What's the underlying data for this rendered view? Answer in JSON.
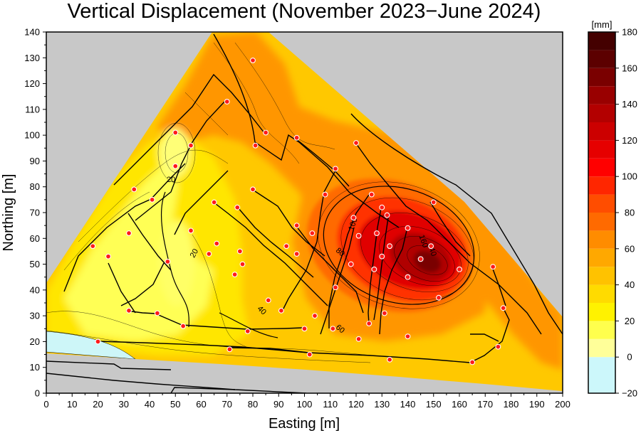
{
  "chart_data": {
    "type": "heatmap",
    "title": "Vertical Displacement (November 2023−June 2024)",
    "xlabel": "Easting [m]",
    "ylabel": "Northing [m]",
    "xlim": [
      0,
      200
    ],
    "ylim": [
      0,
      140
    ],
    "x_ticks": [
      "0",
      "10",
      "20",
      "30",
      "40",
      "50",
      "60",
      "70",
      "80",
      "90",
      "100",
      "110",
      "120",
      "130",
      "140",
      "150",
      "160",
      "170",
      "180",
      "190",
      "200"
    ],
    "y_ticks": [
      "0",
      "10",
      "20",
      "30",
      "40",
      "50",
      "60",
      "70",
      "80",
      "90",
      "100",
      "110",
      "120",
      "130",
      "140"
    ],
    "colorbar": {
      "unit": "[mm]",
      "range": [
        -20,
        180
      ],
      "ticks": [
        "−20",
        "0",
        "20",
        "40",
        "60",
        "80",
        "100",
        "120",
        "140",
        "160",
        "180"
      ],
      "levels": [
        -20,
        0,
        10,
        20,
        30,
        40,
        50,
        60,
        70,
        80,
        90,
        100,
        110,
        120,
        130,
        140,
        150,
        160,
        170,
        180
      ],
      "colors": [
        "#ccf7fb",
        "#ffff99",
        "#ffff4d",
        "#fff200",
        "#ffdb00",
        "#ffc200",
        "#ffa800",
        "#ff8c00",
        "#ff6a00",
        "#ff4d00",
        "#ff2600",
        "#ff0000",
        "#e60000",
        "#cc0000",
        "#b30000",
        "#990000",
        "#7a0000",
        "#5c0000",
        "#440000"
      ]
    },
    "contour_labels": [
      "20",
      "20",
      "40",
      "60",
      "80",
      "100",
      "140",
      "160"
    ],
    "points": [
      {
        "x": 80,
        "y": 129
      },
      {
        "x": 70,
        "y": 113
      },
      {
        "x": 85,
        "y": 101
      },
      {
        "x": 50,
        "y": 101
      },
      {
        "x": 56,
        "y": 96
      },
      {
        "x": 81,
        "y": 96
      },
      {
        "x": 97,
        "y": 99
      },
      {
        "x": 120,
        "y": 97
      },
      {
        "x": 50,
        "y": 88
      },
      {
        "x": 112,
        "y": 87
      },
      {
        "x": 34,
        "y": 79
      },
      {
        "x": 80,
        "y": 79
      },
      {
        "x": 41,
        "y": 75
      },
      {
        "x": 65,
        "y": 74
      },
      {
        "x": 108,
        "y": 77
      },
      {
        "x": 126,
        "y": 77
      },
      {
        "x": 150,
        "y": 74
      },
      {
        "x": 74,
        "y": 72
      },
      {
        "x": 130,
        "y": 72
      },
      {
        "x": 132,
        "y": 69
      },
      {
        "x": 119,
        "y": 68
      },
      {
        "x": 97,
        "y": 65
      },
      {
        "x": 140,
        "y": 64
      },
      {
        "x": 56,
        "y": 63
      },
      {
        "x": 32,
        "y": 62
      },
      {
        "x": 103,
        "y": 62
      },
      {
        "x": 121,
        "y": 61
      },
      {
        "x": 128,
        "y": 62
      },
      {
        "x": 66,
        "y": 58
      },
      {
        "x": 93,
        "y": 57
      },
      {
        "x": 18,
        "y": 57
      },
      {
        "x": 133,
        "y": 57
      },
      {
        "x": 149,
        "y": 57
      },
      {
        "x": 24,
        "y": 53
      },
      {
        "x": 63,
        "y": 54
      },
      {
        "x": 75,
        "y": 55
      },
      {
        "x": 97,
        "y": 54
      },
      {
        "x": 130,
        "y": 53
      },
      {
        "x": 145,
        "y": 52
      },
      {
        "x": 47,
        "y": 51
      },
      {
        "x": 76,
        "y": 50
      },
      {
        "x": 118,
        "y": 50
      },
      {
        "x": 127,
        "y": 48
      },
      {
        "x": 160,
        "y": 48
      },
      {
        "x": 173,
        "y": 49
      },
      {
        "x": 73,
        "y": 46
      },
      {
        "x": 140,
        "y": 45
      },
      {
        "x": 112,
        "y": 41
      },
      {
        "x": 152,
        "y": 37
      },
      {
        "x": 86,
        "y": 36
      },
      {
        "x": 177,
        "y": 33
      },
      {
        "x": 32,
        "y": 32
      },
      {
        "x": 91,
        "y": 32
      },
      {
        "x": 43,
        "y": 31
      },
      {
        "x": 104,
        "y": 30
      },
      {
        "x": 131,
        "y": 31
      },
      {
        "x": 125,
        "y": 27
      },
      {
        "x": 53,
        "y": 26
      },
      {
        "x": 100,
        "y": 25
      },
      {
        "x": 111,
        "y": 25
      },
      {
        "x": 78,
        "y": 24
      },
      {
        "x": 140,
        "y": 22
      },
      {
        "x": 121,
        "y": 21
      },
      {
        "x": 20,
        "y": 20
      },
      {
        "x": 175,
        "y": 18
      },
      {
        "x": 71,
        "y": 17
      },
      {
        "x": 102,
        "y": 15
      },
      {
        "x": 133,
        "y": 13
      },
      {
        "x": 165,
        "y": 12
      }
    ]
  }
}
